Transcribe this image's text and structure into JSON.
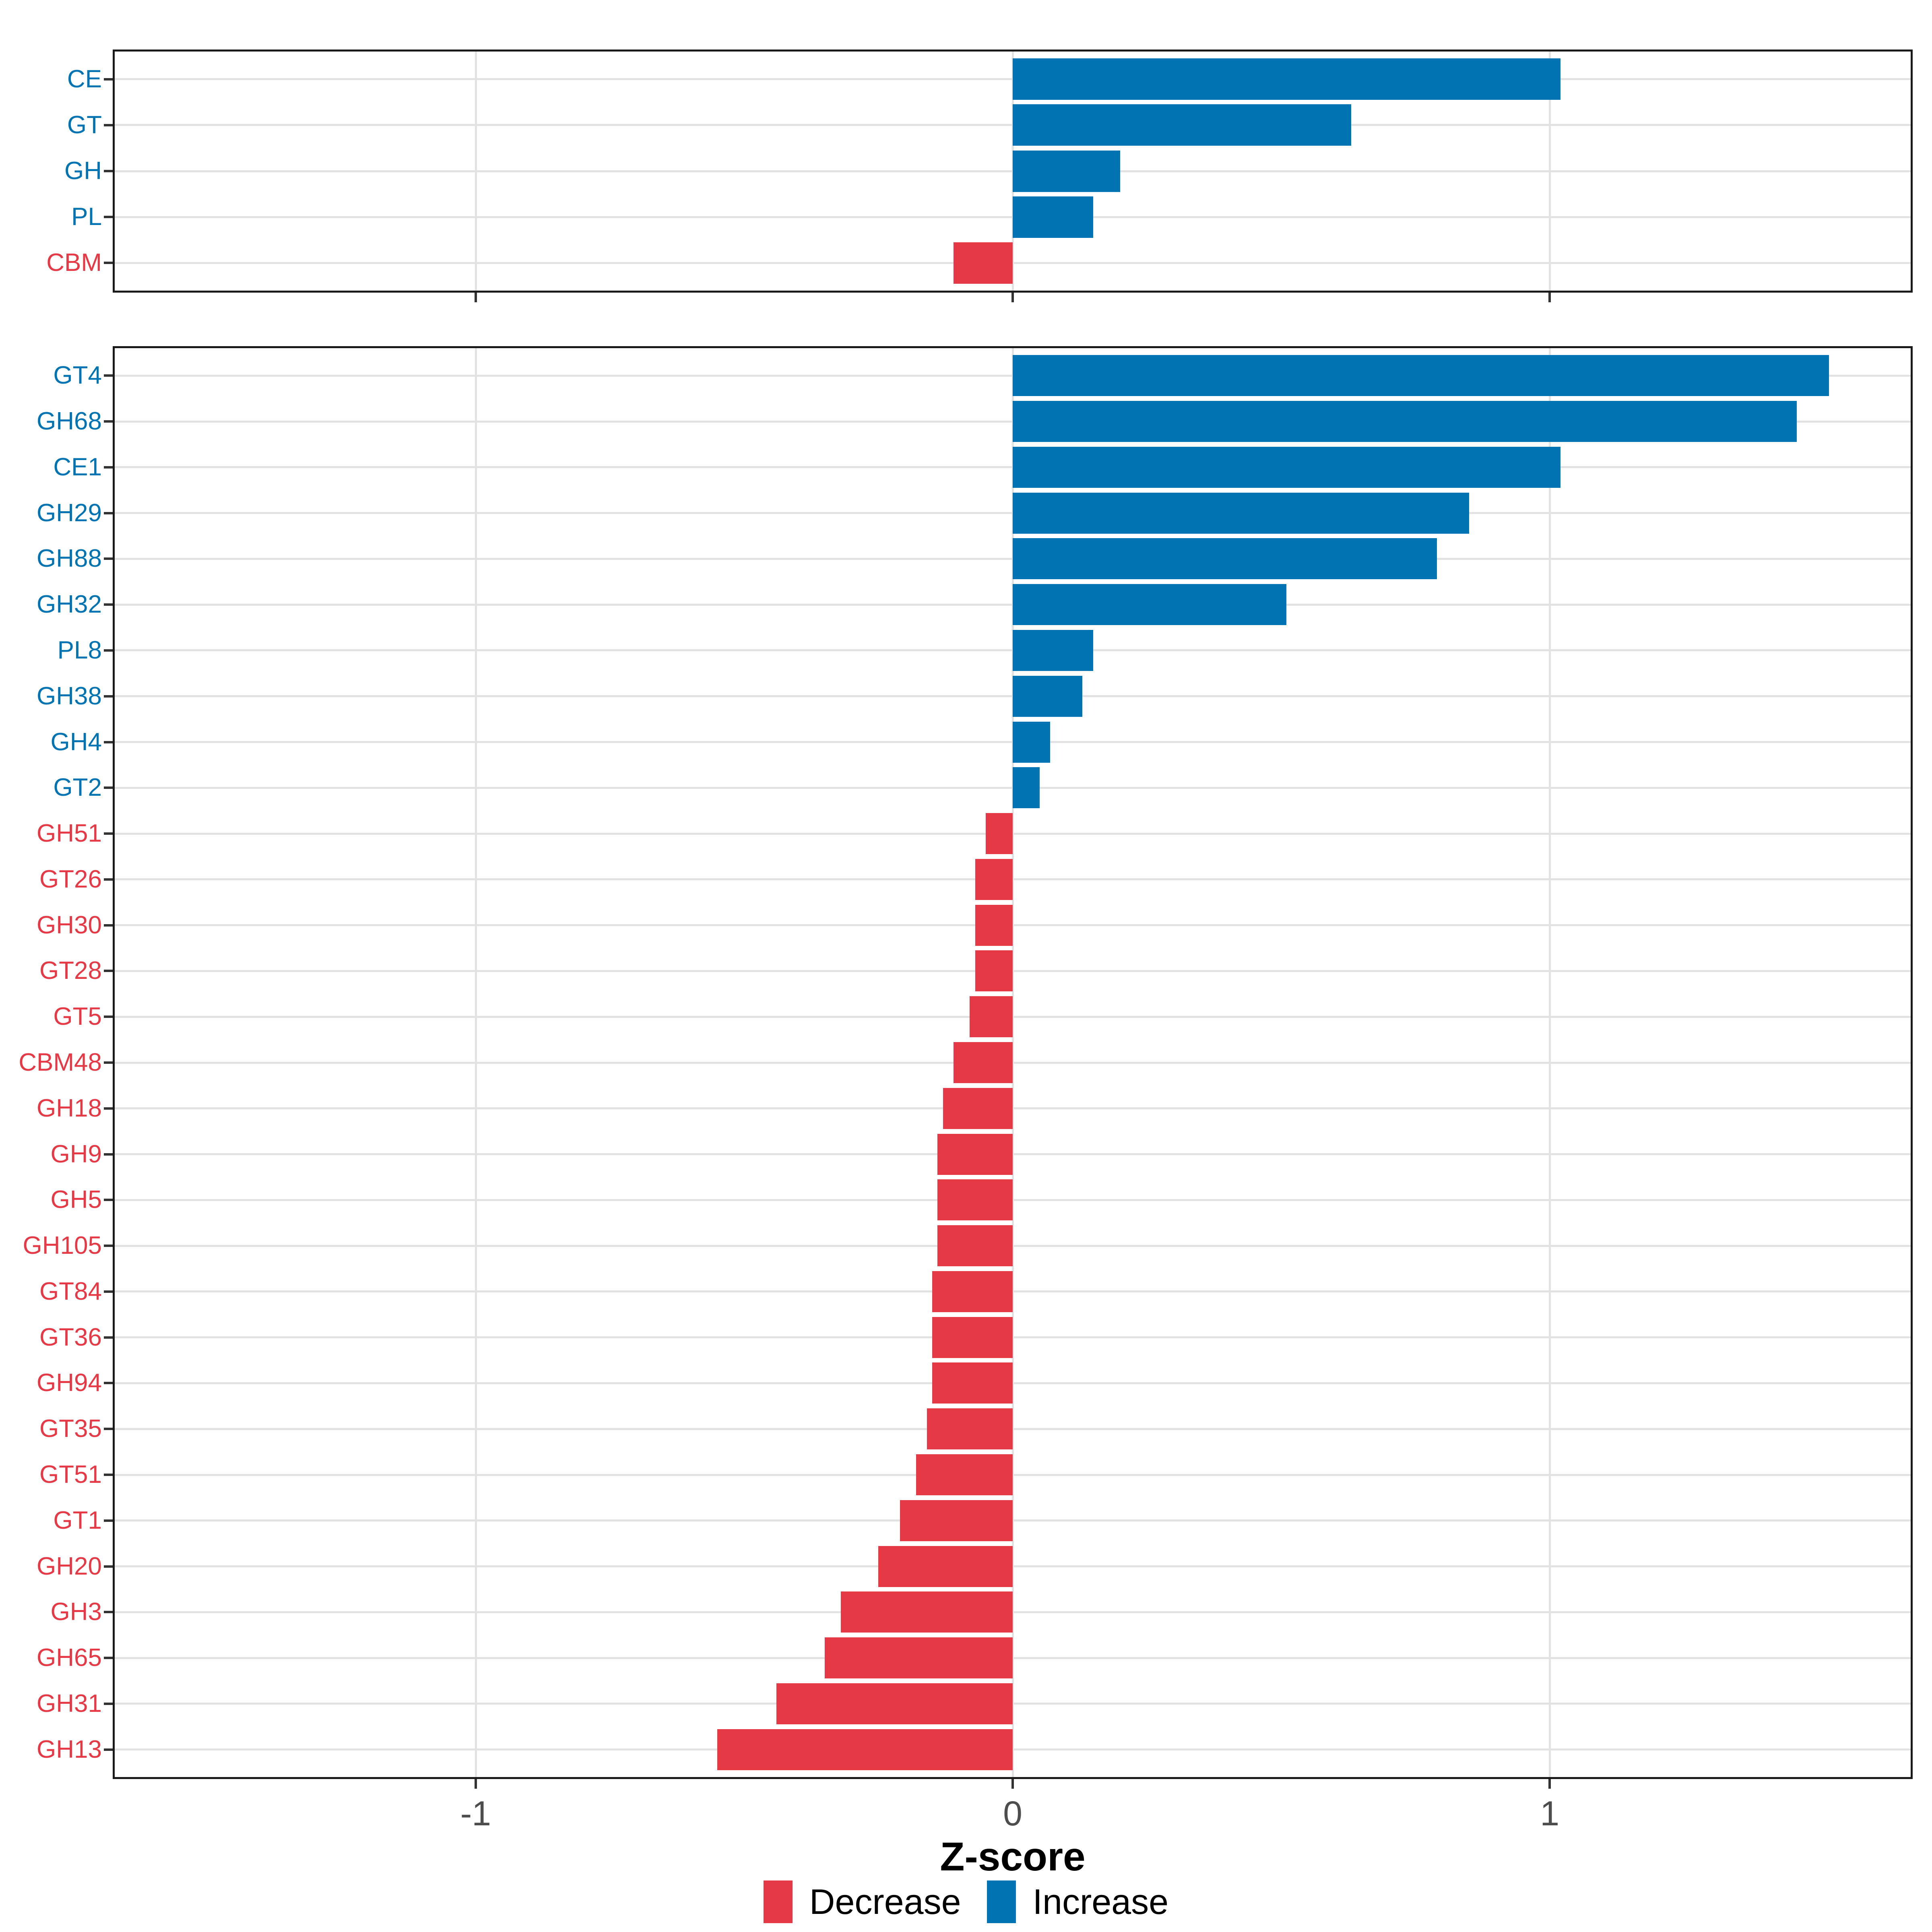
{
  "axis": {
    "label": "Z-score",
    "tick_values": [
      -1,
      0,
      1
    ],
    "tick_labels": [
      "-1",
      "0",
      "1"
    ],
    "xlim": [
      -1.67,
      1.67
    ]
  },
  "legend": {
    "items": [
      {
        "label": "Decrease",
        "color": "#e63946"
      },
      {
        "label": "Increase",
        "color": "#0073b2"
      }
    ]
  },
  "colors": {
    "increase": "#0073b2",
    "decrease": "#e63946",
    "grid": "#e2e2e2",
    "panel_border": "#1a1a1a",
    "tick": "#333333",
    "axis_text": "#4d4d4d"
  },
  "chart_data": [
    {
      "type": "bar",
      "orientation": "horizontal",
      "name": "cazyme-class-panel",
      "categories": [
        "CE",
        "GT",
        "GH",
        "PL",
        "CBM"
      ],
      "values": [
        1.02,
        0.63,
        0.2,
        0.15,
        -0.11
      ],
      "xlabel": "Z-score",
      "grid": true,
      "legend_position": "bottom"
    },
    {
      "type": "bar",
      "orientation": "horizontal",
      "name": "cazyme-family-panel",
      "categories": [
        "GT4",
        "GH68",
        "CE1",
        "GH29",
        "GH88",
        "GH32",
        "PL8",
        "GH38",
        "GH4",
        "GT2",
        "GH51",
        "GT26",
        "GH30",
        "GT28",
        "GT5",
        "CBM48",
        "GH18",
        "GH9",
        "GH5",
        "GH105",
        "GT84",
        "GT36",
        "GH94",
        "GT35",
        "GT51",
        "GT1",
        "GH20",
        "GH3",
        "GH65",
        "GH31",
        "GH13"
      ],
      "values": [
        1.52,
        1.46,
        1.02,
        0.85,
        0.79,
        0.51,
        0.15,
        0.13,
        0.07,
        0.05,
        -0.05,
        -0.07,
        -0.07,
        -0.07,
        -0.08,
        -0.11,
        -0.13,
        -0.14,
        -0.14,
        -0.14,
        -0.15,
        -0.15,
        -0.15,
        -0.16,
        -0.18,
        -0.21,
        -0.25,
        -0.32,
        -0.35,
        -0.44,
        -0.55
      ],
      "xlabel": "Z-score",
      "grid": true,
      "legend_position": "bottom"
    }
  ]
}
